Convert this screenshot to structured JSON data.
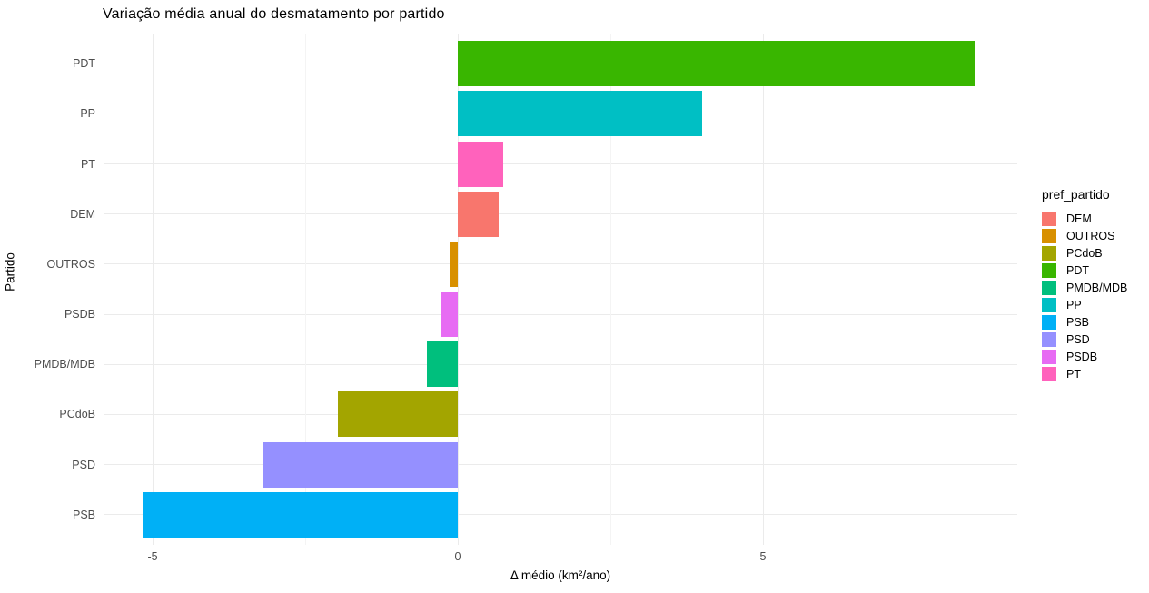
{
  "chart_data": {
    "type": "bar",
    "orientation": "horizontal",
    "title": "Variação média anual do desmatamento por partido",
    "xlabel": "Δ médio (km²/ano)",
    "ylabel": "Partido",
    "xlim": [
      -5.8,
      9.2
    ],
    "x_major_ticks": [
      -5,
      0,
      5
    ],
    "x_minor_ticks": [
      -2.5,
      2.5,
      7.5
    ],
    "grid": true,
    "legend_position": "right",
    "legend_title": "pref_partido",
    "categories_top_to_bottom": [
      "PDT",
      "PP",
      "PT",
      "DEM",
      "OUTROS",
      "PSDB",
      "PMDB/MDB",
      "PCdoB",
      "PSD",
      "PSB"
    ],
    "series": [
      {
        "party": "PDT",
        "value": 8.47,
        "color": "#39B600"
      },
      {
        "party": "PP",
        "value": 4.0,
        "color": "#00BFC4"
      },
      {
        "party": "PT",
        "value": 0.74,
        "color": "#FF62BC"
      },
      {
        "party": "DEM",
        "value": 0.67,
        "color": "#F8766D"
      },
      {
        "party": "OUTROS",
        "value": -0.13,
        "color": "#D89000"
      },
      {
        "party": "PSDB",
        "value": -0.27,
        "color": "#E76BF3"
      },
      {
        "party": "PMDB/MDB",
        "value": -0.5,
        "color": "#00BF7D"
      },
      {
        "party": "PCdoB",
        "value": -1.97,
        "color": "#A3A500"
      },
      {
        "party": "PSD",
        "value": -3.18,
        "color": "#9590FF"
      },
      {
        "party": "PSB",
        "value": -5.16,
        "color": "#00B0F6"
      }
    ],
    "legend_entries": [
      {
        "label": "DEM",
        "color": "#F8766D"
      },
      {
        "label": "OUTROS",
        "color": "#D89000"
      },
      {
        "label": "PCdoB",
        "color": "#A3A500"
      },
      {
        "label": "PDT",
        "color": "#39B600"
      },
      {
        "label": "PMDB/MDB",
        "color": "#00BF7D"
      },
      {
        "label": "PP",
        "color": "#00BFC4"
      },
      {
        "label": "PSB",
        "color": "#00B0F6"
      },
      {
        "label": "PSD",
        "color": "#9590FF"
      },
      {
        "label": "PSDB",
        "color": "#E76BF3"
      },
      {
        "label": "PT",
        "color": "#FF62BC"
      }
    ],
    "grid_color_major": "#EBEBEB",
    "grid_color_minor": "#F4F4F4",
    "tick_label_color": "#4D4D4D",
    "text_color": "#000000"
  }
}
